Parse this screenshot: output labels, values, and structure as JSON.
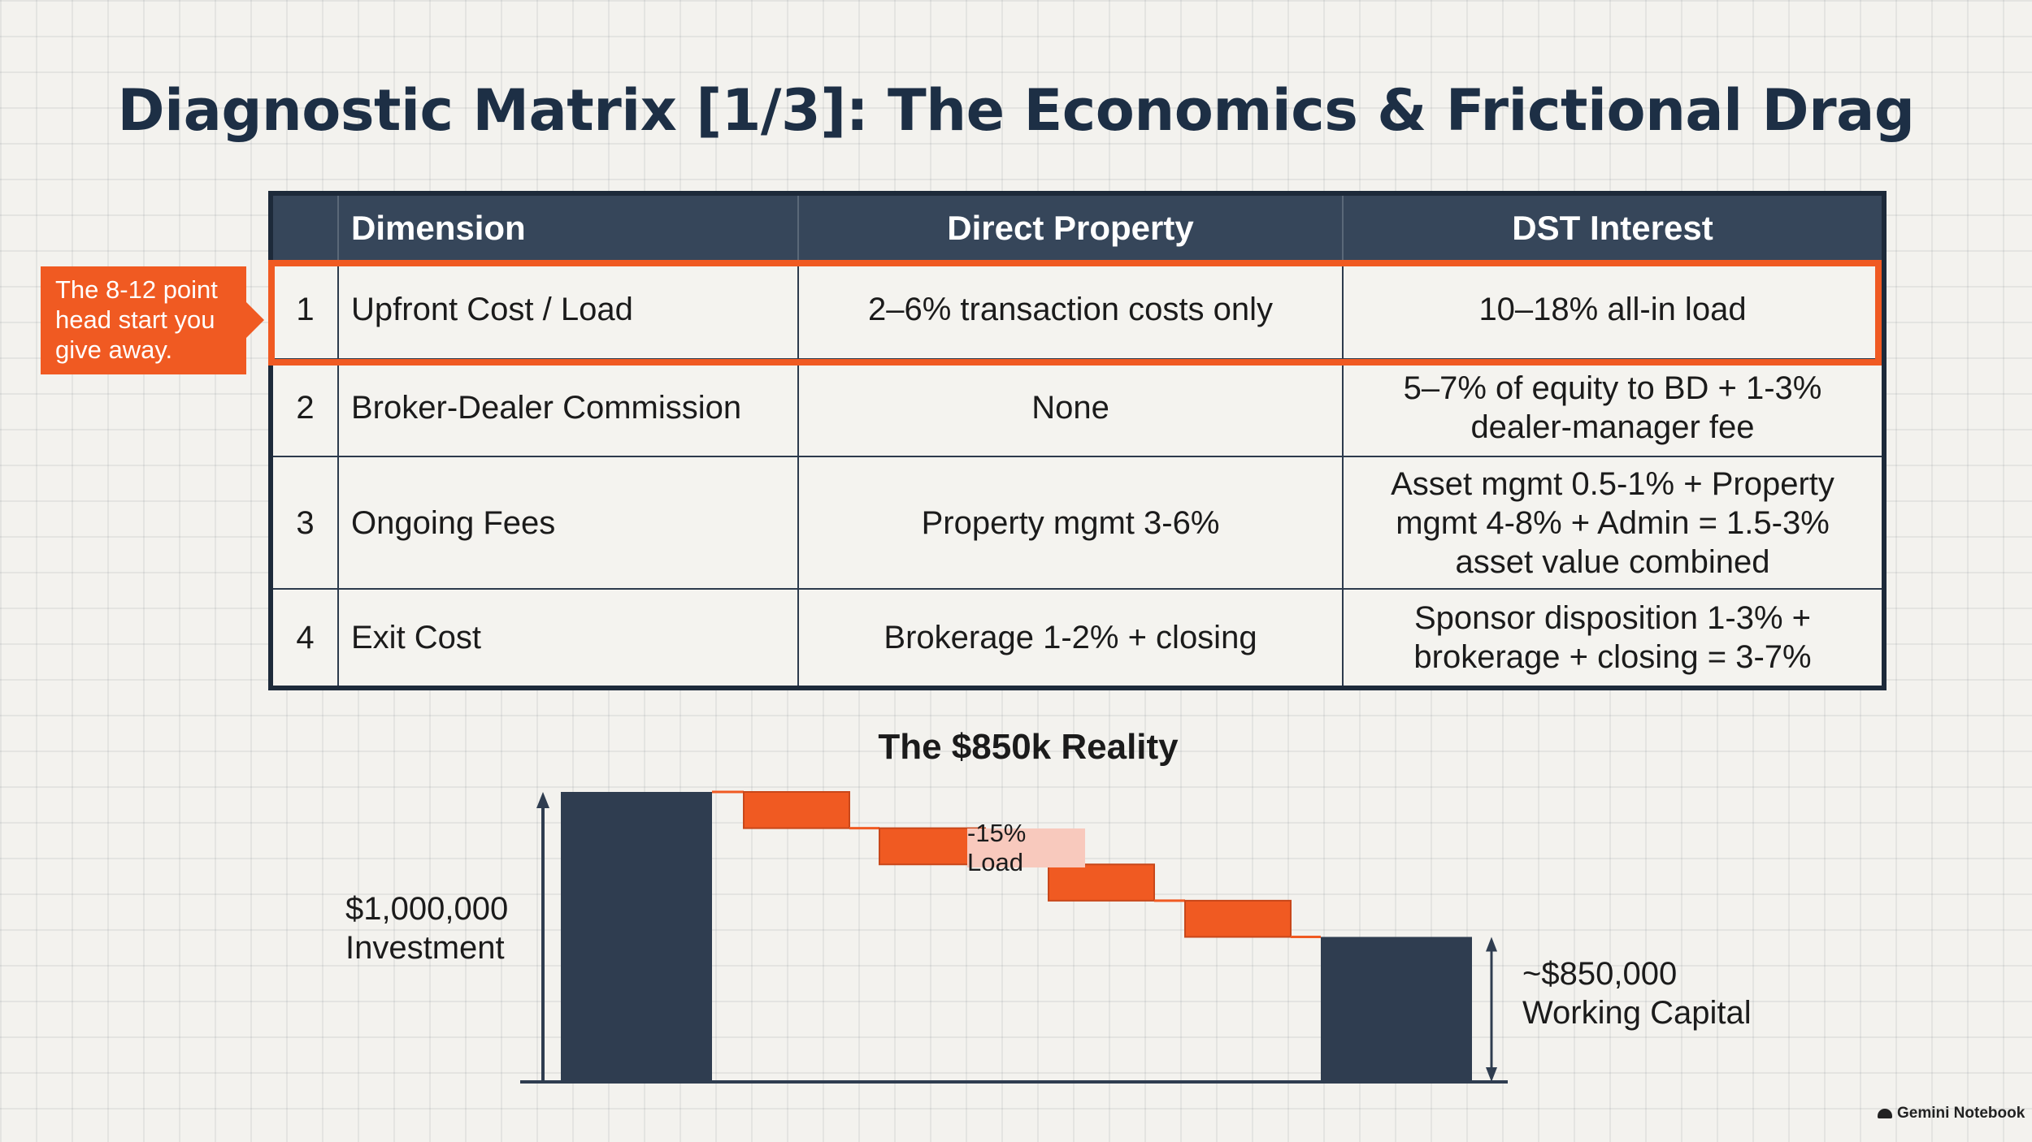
{
  "title": "Diagnostic Matrix [1/3]: The Economics & Frictional Drag",
  "matrix": {
    "headers": [
      "",
      "Dimension",
      "Direct Property",
      "DST Interest"
    ],
    "rows": [
      {
        "num": "1",
        "dimension": "Upfront Cost / Load",
        "direct": "2–6% transaction costs only",
        "dst": "10–18% all-in load"
      },
      {
        "num": "2",
        "dimension": "Broker-Dealer Commission",
        "direct": "None",
        "dst": "5–7% of equity to BD + 1-3% dealer-manager fee"
      },
      {
        "num": "3",
        "dimension": "Ongoing Fees",
        "direct": "Property mgmt 3-6%",
        "dst": "Asset mgmt 0.5-1% + Property mgmt 4-8% + Admin = 1.5-3% asset value combined"
      },
      {
        "num": "4",
        "dimension": "Exit Cost",
        "direct": "Brokerage 1-2% + closing",
        "dst": "Sponsor disposition 1-3% + brokerage + closing = 3-7%"
      }
    ],
    "highlight_color": "#f05a22"
  },
  "callout": {
    "text": "The 8-12 point head start you give away.",
    "color": "#f05a22"
  },
  "chart_data": {
    "type": "waterfall",
    "title": "The $850k Reality",
    "start": {
      "value": 1000000,
      "label_amount": "$1,000,000",
      "label_text": "Investment"
    },
    "steps": [
      -37500,
      -37500,
      -37500,
      -37500
    ],
    "end": {
      "value": 850000,
      "label_amount": "~$850,000",
      "label_text": "Working Capital"
    },
    "annotation": "-15% Load",
    "colors": {
      "total": "#2f3d50",
      "step": "#f05a22"
    }
  },
  "watermark": "Gemini Notebook"
}
